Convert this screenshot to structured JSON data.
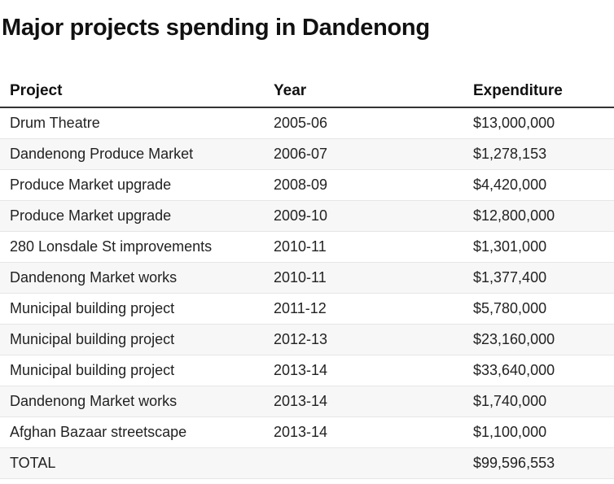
{
  "title": "Major projects spending in Dandenong",
  "table": {
    "headers": [
      "Project",
      "Year",
      "Expenditure"
    ],
    "rows": [
      {
        "project": "Drum Theatre",
        "year": "2005-06",
        "expenditure": "$13,000,000"
      },
      {
        "project": "Dandenong Produce Market",
        "year": "2006-07",
        "expenditure": "$1,278,153"
      },
      {
        "project": "Produce Market upgrade",
        "year": "2008-09",
        "expenditure": "$4,420,000"
      },
      {
        "project": "Produce Market upgrade",
        "year": "2009-10",
        "expenditure": "$12,800,000"
      },
      {
        "project": "280 Lonsdale St improvements",
        "year": "2010-11",
        "expenditure": "$1,301,000"
      },
      {
        "project": "Dandenong Market works",
        "year": "2010-11",
        "expenditure": "$1,377,400"
      },
      {
        "project": "Municipal building project",
        "year": "2011-12",
        "expenditure": "$5,780,000"
      },
      {
        "project": "Municipal building project",
        "year": "2012-13",
        "expenditure": "$23,160,000"
      },
      {
        "project": "Municipal building project",
        "year": "2013-14",
        "expenditure": "$33,640,000"
      },
      {
        "project": "Dandenong Market works",
        "year": "2013-14",
        "expenditure": "$1,740,000"
      },
      {
        "project": "Afghan Bazaar streetscape",
        "year": "2013-14",
        "expenditure": "$1,100,000"
      },
      {
        "project": "TOTAL",
        "year": "",
        "expenditure": "$99,596,553"
      }
    ]
  }
}
